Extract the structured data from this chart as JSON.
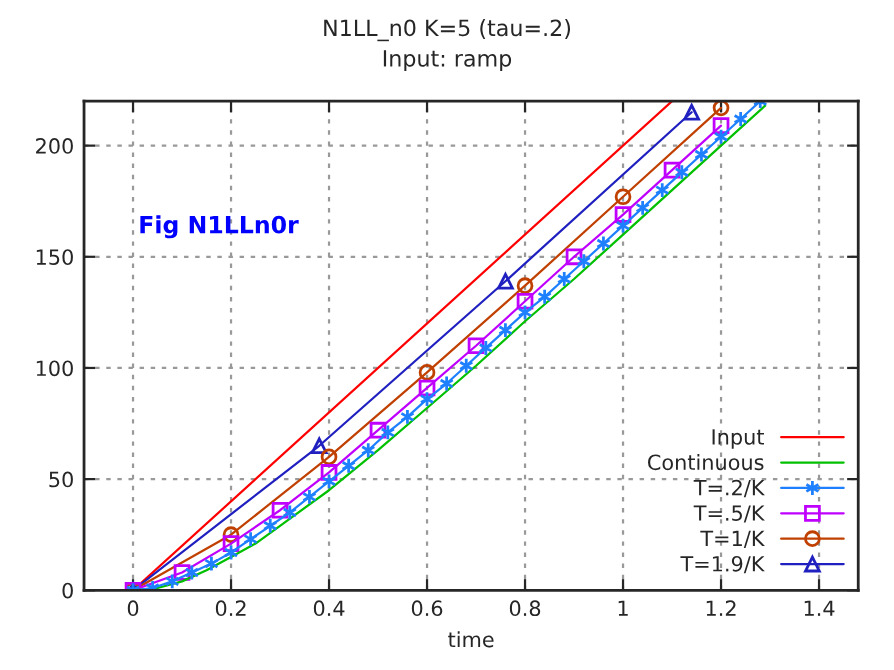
{
  "chart_data": {
    "type": "line",
    "title": "N1LL_n0 K=5 (tau=.2)",
    "subtitle": "Input: ramp",
    "xlabel": "time",
    "annotations": [
      "Fig N1LLn0r"
    ],
    "xlim": [
      -0.1,
      1.48
    ],
    "xticks": [
      0,
      0.2,
      0.4,
      0.6,
      0.8,
      1,
      1.2,
      1.4
    ],
    "ylim": [
      0,
      220
    ],
    "yticks": [
      0,
      50,
      100,
      150,
      200
    ],
    "grid": true,
    "legend": "bottom right",
    "line_style": "solid",
    "series": [
      {
        "name": "Input",
        "color": "#ff0000",
        "marker": "none",
        "x": [
          0,
          1.1
        ],
        "values": [
          0,
          220
        ]
      },
      {
        "name": "Continuous",
        "color": "#00c000",
        "marker": "none",
        "x": [
          0,
          0.05,
          0.1,
          0.15,
          0.2,
          0.25,
          0.3,
          0.4,
          0.5,
          0.6,
          0.7,
          0.8,
          0.9,
          1.0,
          1.1,
          1.2,
          1.29
        ],
        "values": [
          0,
          1,
          4,
          9,
          15,
          21,
          29,
          45,
          63,
          82,
          101,
          121,
          140,
          160,
          180,
          200,
          218
        ]
      },
      {
        "name": "T=.2/K",
        "color": "#1e80ff",
        "marker": "cross",
        "x": [
          0,
          0.04,
          0.08,
          0.12,
          0.16,
          0.2,
          0.24,
          0.28,
          0.32,
          0.36,
          0.4,
          0.44,
          0.48,
          0.52,
          0.56,
          0.6,
          0.64,
          0.68,
          0.72,
          0.76,
          0.8,
          0.84,
          0.88,
          0.92,
          0.96,
          1.0,
          1.04,
          1.08,
          1.12,
          1.16,
          1.2,
          1.24,
          1.28
        ],
        "values": [
          0,
          1,
          4,
          8,
          12,
          17,
          23,
          29,
          35,
          42,
          49,
          56,
          63,
          71,
          78,
          86,
          93,
          101,
          109,
          117,
          125,
          132,
          140,
          148,
          156,
          164,
          172,
          180,
          188,
          196,
          204,
          212,
          220
        ]
      },
      {
        "name": "T=.5/K",
        "color": "#c000ff",
        "marker": "square",
        "x": [
          0,
          0.1,
          0.2,
          0.3,
          0.4,
          0.5,
          0.6,
          0.7,
          0.8,
          0.9,
          1.0,
          1.1,
          1.2
        ],
        "values": [
          0,
          8,
          21,
          36,
          53,
          72,
          91,
          110,
          130,
          150,
          169,
          189,
          209
        ]
      },
      {
        "name": "T=1/K",
        "color": "#c04000",
        "marker": "circle",
        "x": [
          0,
          0.2,
          0.4,
          0.6,
          0.8,
          1.0,
          1.2
        ],
        "values": [
          0,
          25,
          60,
          98,
          137,
          177,
          217
        ]
      },
      {
        "name": "T=1.9/K",
        "color": "#2020c0",
        "marker": "triangle",
        "x": [
          0,
          0.38,
          0.76,
          1.14
        ],
        "values": [
          0,
          65,
          139,
          215
        ]
      }
    ]
  }
}
